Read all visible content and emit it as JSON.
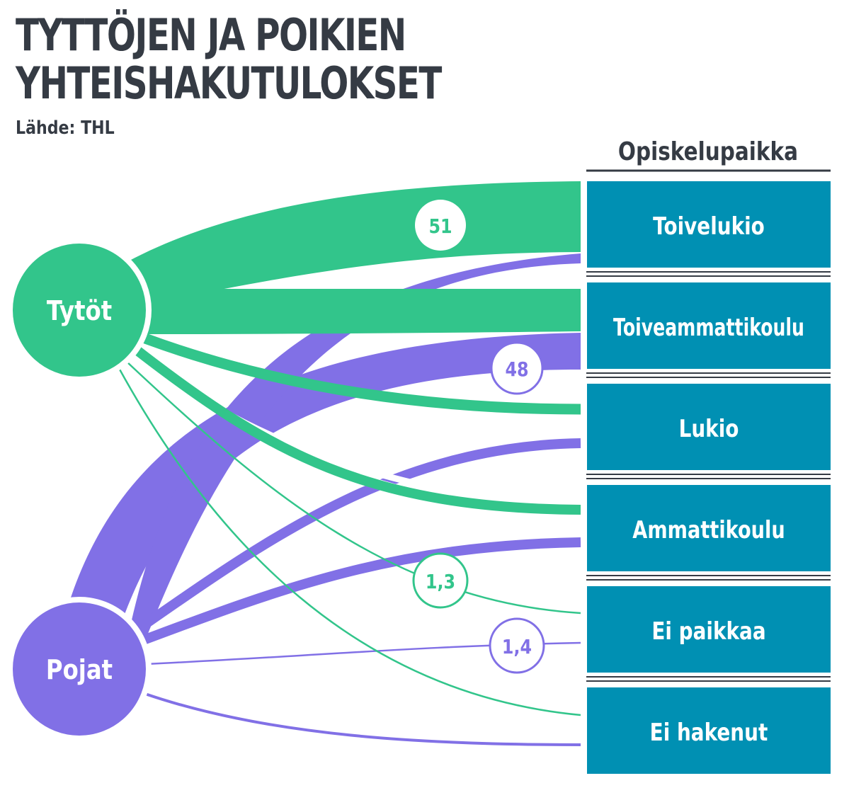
{
  "title": "TYTTÖJEN JA POIKIEN\nYHTEISHAKUTULOKSET",
  "source": "Lähde: THL",
  "column_header": "Opiskelupaikka",
  "sources": [
    {
      "id": "girls",
      "label": "Tytöt",
      "color": "#32c58b"
    },
    {
      "id": "boys",
      "label": "Pojat",
      "color": "#8170e6"
    }
  ],
  "targets": [
    {
      "id": "toivelukio",
      "label": "Toivelukio"
    },
    {
      "id": "toiveammattikoulu",
      "label": "Toiveammattikoulu"
    },
    {
      "id": "lukio",
      "label": "Lukio"
    },
    {
      "id": "ammattikoulu",
      "label": "Ammattikoulu"
    },
    {
      "id": "ei-paikkaa",
      "label": "Ei paikkaa"
    },
    {
      "id": "ei-hakenut",
      "label": "Ei hakenut"
    }
  ],
  "value_labels": [
    {
      "text": "51",
      "source": "girls",
      "target": "toivelukio"
    },
    {
      "text": "48",
      "source": "boys",
      "target": "toiveammattikoulu"
    },
    {
      "text": "1,3",
      "source": "girls",
      "target": "ei-paikkaa"
    },
    {
      "text": "1,4",
      "source": "boys",
      "target": "ei-paikkaa"
    }
  ],
  "colors": {
    "girls": "#32c58b",
    "boys": "#8170e6",
    "target_box": "#0090b3",
    "title": "#353b44"
  }
}
